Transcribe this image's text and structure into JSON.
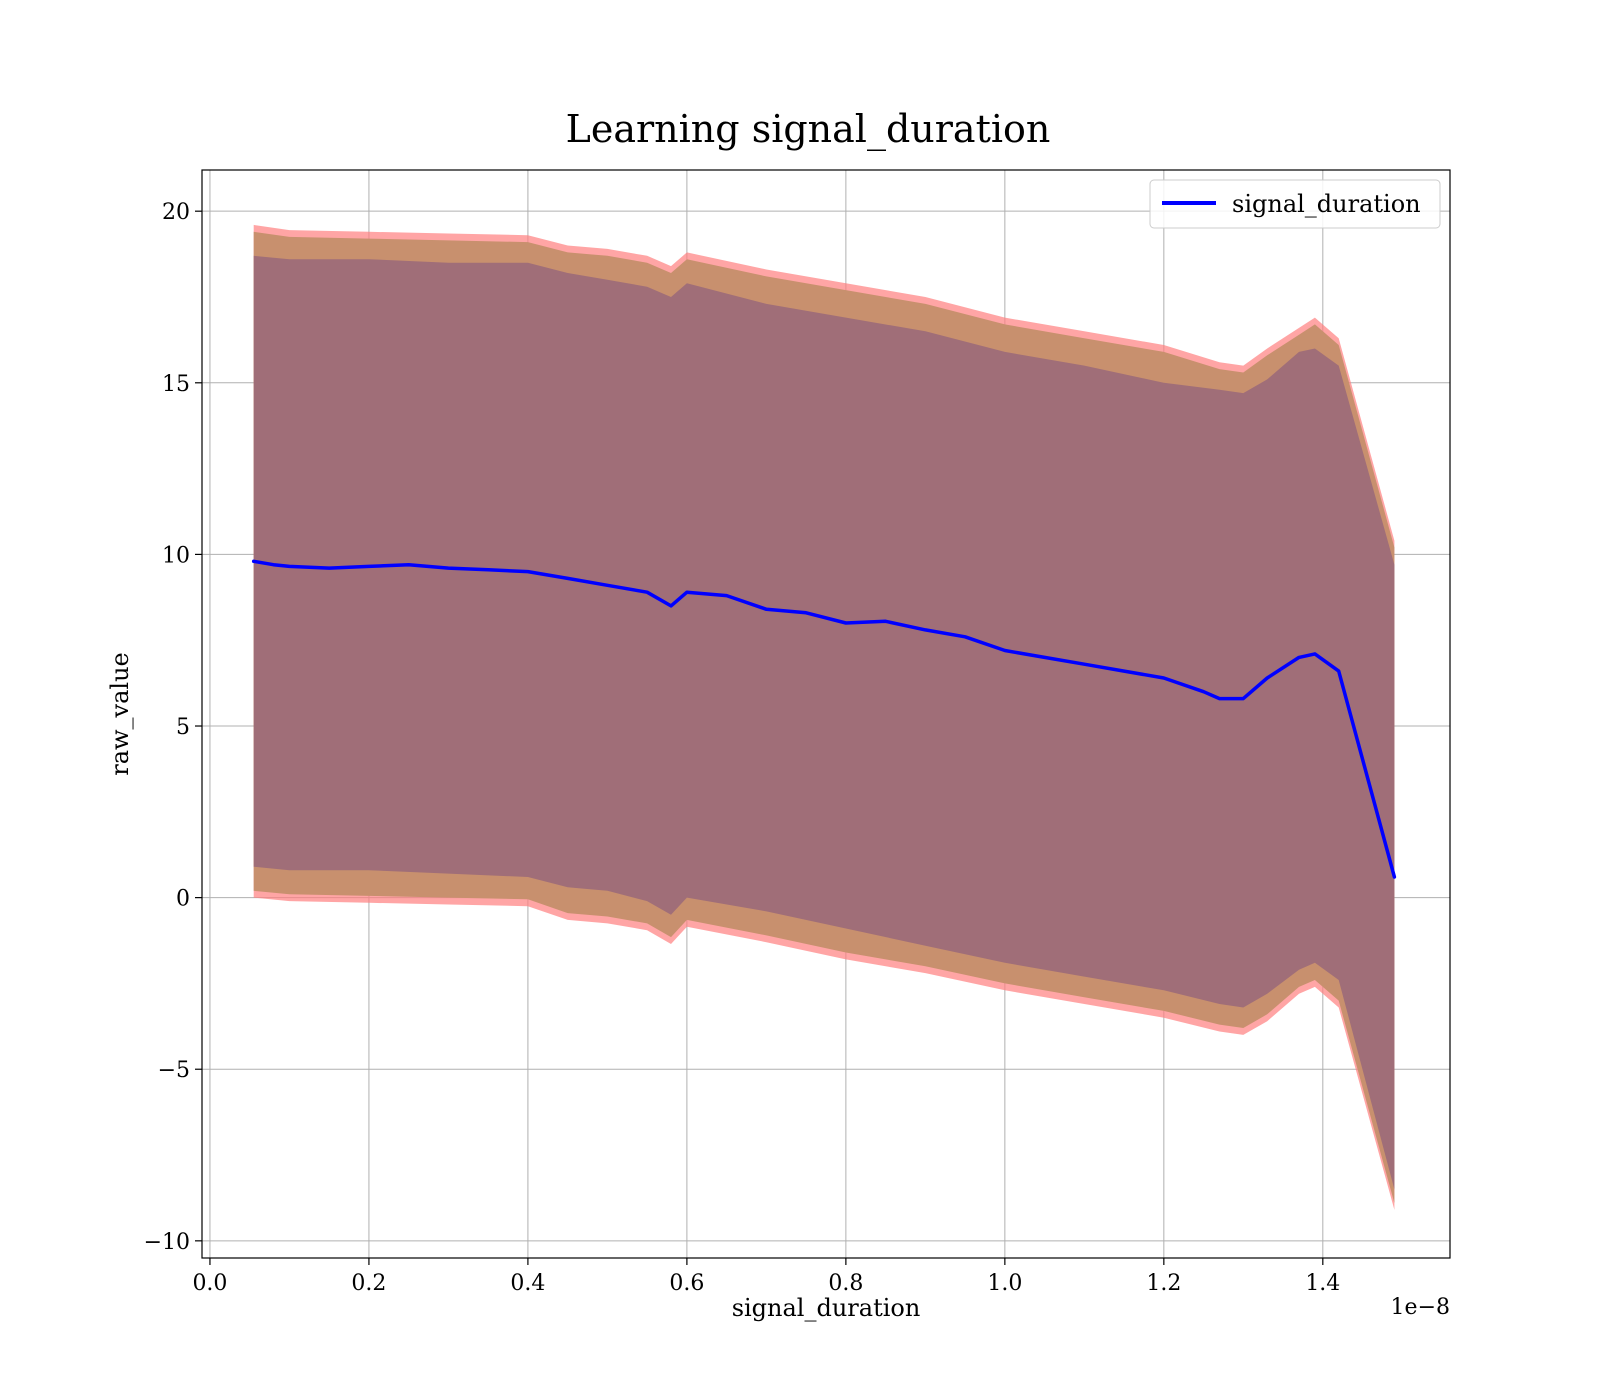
{
  "chart_data": {
    "type": "line",
    "title": "Learning signal_duration",
    "xlabel": "signal_duration",
    "ylabel": "raw_value",
    "x_offset_label": "1e−8",
    "xlim": [
      -0.01,
      1.56
    ],
    "ylim": [
      -10.5,
      21.2
    ],
    "x_ticks": [
      0.0,
      0.2,
      0.4,
      0.6,
      0.8,
      1.0,
      1.2,
      1.4
    ],
    "x_tick_labels": [
      "0.0",
      "0.2",
      "0.4",
      "0.6",
      "0.8",
      "1.0",
      "1.2",
      "1.4"
    ],
    "y_ticks": [
      -10,
      -5,
      0,
      5,
      10,
      15,
      20
    ],
    "y_tick_labels": [
      "−10",
      "−5",
      "0",
      "5",
      "10",
      "15",
      "20"
    ],
    "grid": true,
    "legend_position": "top-right",
    "colors": {
      "line": "#0000ff",
      "band_outer": "#ff7f7f",
      "band_middle": "#c8906e",
      "band_inner": "#a06e78",
      "grid": "#b0b0b0"
    },
    "series": [
      {
        "name": "signal_duration",
        "x": [
          0.055,
          0.08,
          0.1,
          0.15,
          0.2,
          0.25,
          0.3,
          0.35,
          0.4,
          0.45,
          0.5,
          0.55,
          0.58,
          0.6,
          0.65,
          0.7,
          0.75,
          0.8,
          0.85,
          0.9,
          0.95,
          1.0,
          1.05,
          1.1,
          1.15,
          1.2,
          1.25,
          1.27,
          1.3,
          1.33,
          1.37,
          1.39,
          1.42,
          1.49
        ],
        "y": [
          9.8,
          9.7,
          9.65,
          9.6,
          9.65,
          9.7,
          9.6,
          9.55,
          9.5,
          9.3,
          9.1,
          8.9,
          8.5,
          8.9,
          8.8,
          8.4,
          8.3,
          8.0,
          8.05,
          7.8,
          7.6,
          7.2,
          7.0,
          6.8,
          6.6,
          6.4,
          6.0,
          5.8,
          5.8,
          6.4,
          7.0,
          7.1,
          6.6,
          0.6
        ]
      }
    ],
    "bands": [
      {
        "x": [
          0.055,
          0.1,
          0.2,
          0.3,
          0.4,
          0.45,
          0.5,
          0.55,
          0.58,
          0.6,
          0.7,
          0.8,
          0.9,
          1.0,
          1.1,
          1.2,
          1.27,
          1.3,
          1.33,
          1.37,
          1.39,
          1.42,
          1.49
        ],
        "upper": [
          19.6,
          19.45,
          19.4,
          19.35,
          19.3,
          19.0,
          18.9,
          18.7,
          18.4,
          18.8,
          18.3,
          17.9,
          17.5,
          16.9,
          16.5,
          16.1,
          15.6,
          15.5,
          16.0,
          16.6,
          16.9,
          16.3,
          10.4
        ],
        "lower": [
          0.0,
          -0.1,
          -0.15,
          -0.2,
          -0.25,
          -0.65,
          -0.75,
          -0.95,
          -1.35,
          -0.85,
          -1.3,
          -1.8,
          -2.2,
          -2.7,
          -3.1,
          -3.5,
          -3.9,
          -4.0,
          -3.6,
          -2.8,
          -2.6,
          -3.2,
          -9.1
        ]
      },
      {
        "x": [
          0.055,
          0.1,
          0.2,
          0.3,
          0.4,
          0.45,
          0.5,
          0.55,
          0.58,
          0.6,
          0.7,
          0.8,
          0.9,
          1.0,
          1.1,
          1.2,
          1.27,
          1.3,
          1.33,
          1.37,
          1.39,
          1.42,
          1.49
        ],
        "upper": [
          19.4,
          19.25,
          19.2,
          19.15,
          19.1,
          18.8,
          18.7,
          18.5,
          18.2,
          18.6,
          18.1,
          17.7,
          17.3,
          16.7,
          16.3,
          15.9,
          15.4,
          15.3,
          15.8,
          16.4,
          16.7,
          16.1,
          10.2
        ],
        "lower": [
          0.2,
          0.1,
          0.05,
          0.0,
          -0.05,
          -0.45,
          -0.55,
          -0.75,
          -1.15,
          -0.65,
          -1.1,
          -1.6,
          -2.0,
          -2.5,
          -2.9,
          -3.3,
          -3.7,
          -3.8,
          -3.4,
          -2.6,
          -2.4,
          -3.0,
          -8.9
        ]
      },
      {
        "x": [
          0.055,
          0.1,
          0.2,
          0.3,
          0.4,
          0.45,
          0.5,
          0.55,
          0.58,
          0.6,
          0.7,
          0.8,
          0.9,
          1.0,
          1.1,
          1.2,
          1.27,
          1.3,
          1.33,
          1.37,
          1.39,
          1.42,
          1.49
        ],
        "upper": [
          18.7,
          18.6,
          18.6,
          18.5,
          18.5,
          18.2,
          18.0,
          17.8,
          17.5,
          17.9,
          17.3,
          16.9,
          16.5,
          15.9,
          15.5,
          15.0,
          14.8,
          14.7,
          15.1,
          15.9,
          16.0,
          15.5,
          9.7
        ],
        "lower": [
          0.9,
          0.8,
          0.8,
          0.7,
          0.6,
          0.3,
          0.2,
          -0.1,
          -0.5,
          0.0,
          -0.4,
          -0.9,
          -1.4,
          -1.9,
          -2.3,
          -2.7,
          -3.1,
          -3.2,
          -2.8,
          -2.1,
          -1.9,
          -2.4,
          -8.5
        ]
      }
    ]
  }
}
